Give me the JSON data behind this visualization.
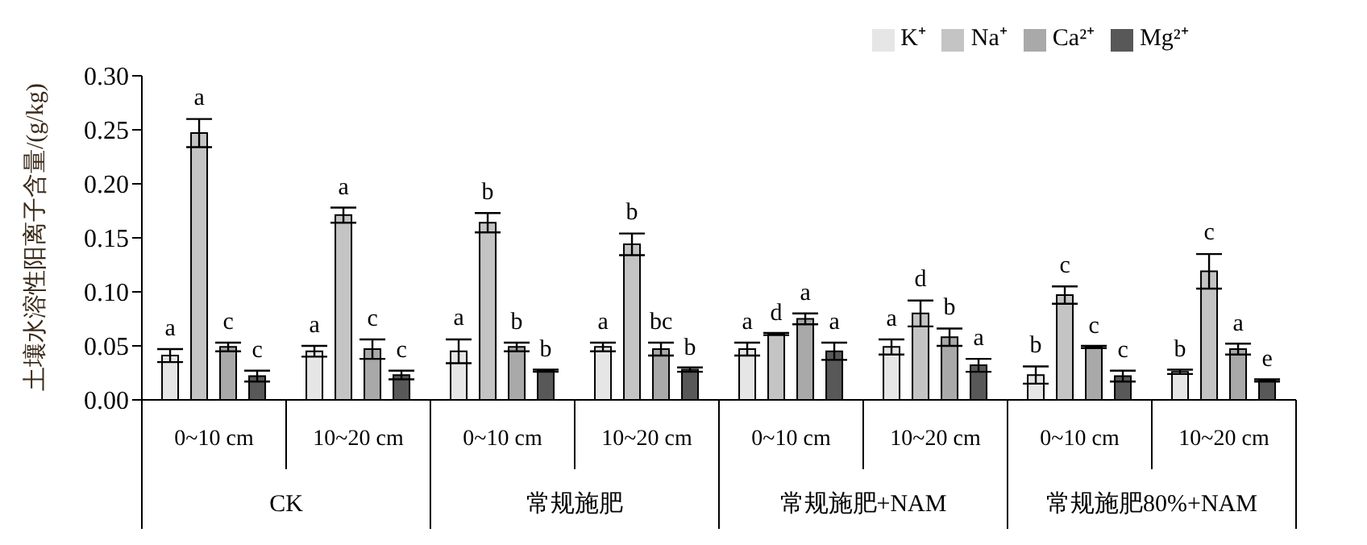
{
  "chart_data": {
    "type": "bar",
    "ylabel": "土壤水溶性阳离子含量/(g/kg)",
    "categories": [
      "0~10 cm",
      "10~20 cm",
      "0~10 cm",
      "10~20 cm",
      "0~10 cm",
      "10~20 cm",
      "0~10 cm",
      "10~20 cm"
    ],
    "annotations": [
      "CK",
      "常规施肥",
      "常规施肥+NAM",
      "常规施肥80%+NAM"
    ],
    "series": [
      {
        "name": "K⁺",
        "color": "#e6e6e6",
        "values": [
          0.041,
          0.045,
          0.045,
          0.049,
          0.047,
          0.049,
          0.023,
          0.026
        ],
        "errors": [
          0.006,
          0.005,
          0.011,
          0.004,
          0.006,
          0.007,
          0.008,
          0.002
        ],
        "value_labels": [
          "a",
          "a",
          "a",
          "a",
          "a",
          "a",
          "b",
          "b"
        ]
      },
      {
        "name": "Na⁺",
        "color": "#c4c4c4",
        "values": [
          0.247,
          0.171,
          0.164,
          0.144,
          0.061,
          0.08,
          0.097,
          0.119
        ],
        "errors": [
          0.013,
          0.007,
          0.009,
          0.01,
          0.001,
          0.012,
          0.008,
          0.016
        ],
        "value_labels": [
          "a",
          "a",
          "b",
          "b",
          "d",
          "d",
          "c",
          "c"
        ]
      },
      {
        "name": "Ca²⁺",
        "color": "#a9a9a9",
        "values": [
          0.049,
          0.047,
          0.049,
          0.047,
          0.075,
          0.058,
          0.049,
          0.047
        ],
        "errors": [
          0.004,
          0.009,
          0.004,
          0.006,
          0.005,
          0.008,
          0.001,
          0.005
        ],
        "value_labels": [
          "c",
          "c",
          "b",
          "bc",
          "a",
          "b",
          "c",
          "a"
        ]
      },
      {
        "name": "Mg²⁺",
        "color": "#585858",
        "values": [
          0.022,
          0.023,
          0.027,
          0.028,
          0.045,
          0.032,
          0.022,
          0.018
        ],
        "errors": [
          0.005,
          0.004,
          0.001,
          0.002,
          0.008,
          0.006,
          0.005,
          0.001
        ],
        "value_labels": [
          "c",
          "c",
          "b",
          "b",
          "a",
          "a",
          "c",
          "e"
        ]
      }
    ],
    "ylim": [
      0,
      0.3
    ],
    "yticks": [
      {
        "value": 0,
        "label": "0.00"
      },
      {
        "value": 0.05,
        "label": "0.05"
      },
      {
        "value": 0.1,
        "label": "0.10"
      },
      {
        "value": 0.15,
        "label": "0.15"
      },
      {
        "value": 0.2,
        "label": "0.20"
      },
      {
        "value": 0.25,
        "label": "0.25"
      },
      {
        "value": 0.3,
        "label": "0.30"
      }
    ],
    "legend": "top right",
    "grid": false
  }
}
